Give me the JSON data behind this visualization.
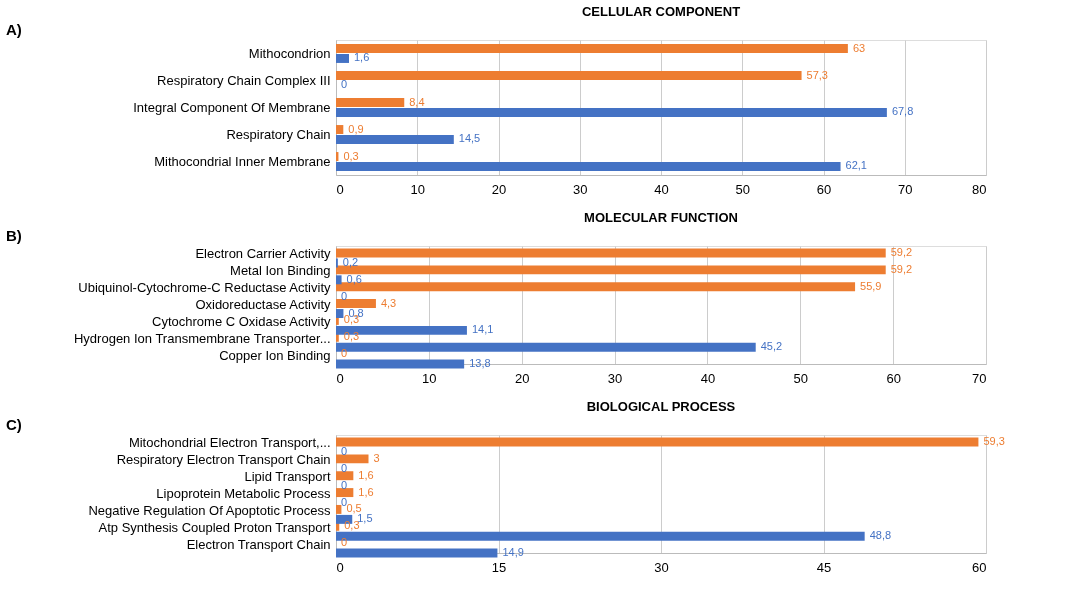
{
  "chart_data": [
    {
      "type": "bar",
      "orientation": "horizontal",
      "title": "CELLULAR COMPONENT",
      "annotations": [
        "A)"
      ],
      "categories": [
        "Mithocondrion",
        "Respiratory Chain Complex III",
        "Integral Component Of Membrane",
        "Respiratory Chain",
        "Mithocondrial Inner Membrane"
      ],
      "series": [
        {
          "color": "#ed7d31",
          "values": [
            63,
            57.3,
            8.4,
            0.9,
            0.3
          ],
          "value_labels": [
            "63",
            "57,3",
            "8,4",
            "0,9",
            "0,3"
          ]
        },
        {
          "color": "#4472c4",
          "values": [
            1.6,
            0,
            67.8,
            14.5,
            62.1
          ],
          "value_labels": [
            "1,6",
            "0",
            "67,8",
            "14,5",
            "62,1"
          ]
        }
      ],
      "xlim": [
        0,
        80
      ],
      "xticks": [
        0,
        10,
        20,
        30,
        40,
        50,
        60,
        70,
        80
      ],
      "grid": "x"
    },
    {
      "type": "bar",
      "orientation": "horizontal",
      "title": "MOLECULAR FUNCTION",
      "annotations": [
        "B)"
      ],
      "categories": [
        "Electron Carrier Activity",
        "Metal Ion Binding",
        "Ubiquinol-Cytochrome-C Reductase Activity",
        "Oxidoreductase Activity",
        "Cytochrome C Oxidase Activity",
        "Hydrogen Ion Transmembrane Transporter...",
        "Copper Ion Binding"
      ],
      "series": [
        {
          "color": "#ed7d31",
          "values": [
            59.2,
            59.2,
            55.9,
            4.3,
            0.3,
            0.3,
            0
          ],
          "value_labels": [
            "59,2",
            "59,2",
            "55,9",
            "4,3",
            "0,3",
            "0,3",
            "0"
          ]
        },
        {
          "color": "#4472c4",
          "values": [
            0.2,
            0.6,
            0,
            0.8,
            14.1,
            45.2,
            13.8
          ],
          "value_labels": [
            "0,2",
            "0,6",
            "0",
            "0,8",
            "14,1",
            "45,2",
            "13,8"
          ]
        }
      ],
      "xlim": [
        0,
        70
      ],
      "xticks": [
        0,
        10,
        20,
        30,
        40,
        50,
        60,
        70
      ],
      "grid": "x"
    },
    {
      "type": "bar",
      "orientation": "horizontal",
      "title": "BIOLOGICAL PROCESS",
      "annotations": [
        "C)"
      ],
      "categories": [
        "Mitochondrial Electron Transport,...",
        "Respiratory Electron Transport Chain",
        "Lipid Transport",
        "Lipoprotein Metabolic Process",
        "Negative Regulation Of Apoptotic Process",
        "Atp Synthesis Coupled Proton Transport",
        "Electron Transport Chain"
      ],
      "series": [
        {
          "color": "#ed7d31",
          "values": [
            59.3,
            3,
            1.6,
            1.6,
            0.5,
            0.3,
            0
          ],
          "value_labels": [
            "59,3",
            "3",
            "1,6",
            "1,6",
            "0,5",
            "0,3",
            "0"
          ]
        },
        {
          "color": "#4472c4",
          "values": [
            0,
            0,
            0,
            0,
            1.5,
            48.8,
            14.9
          ],
          "value_labels": [
            "0",
            "0",
            "0",
            "0",
            "1,5",
            "48,8",
            "14,9"
          ]
        }
      ],
      "xlim": [
        0,
        60
      ],
      "xticks": [
        0,
        15,
        30,
        45,
        60
      ],
      "grid": "x"
    }
  ]
}
